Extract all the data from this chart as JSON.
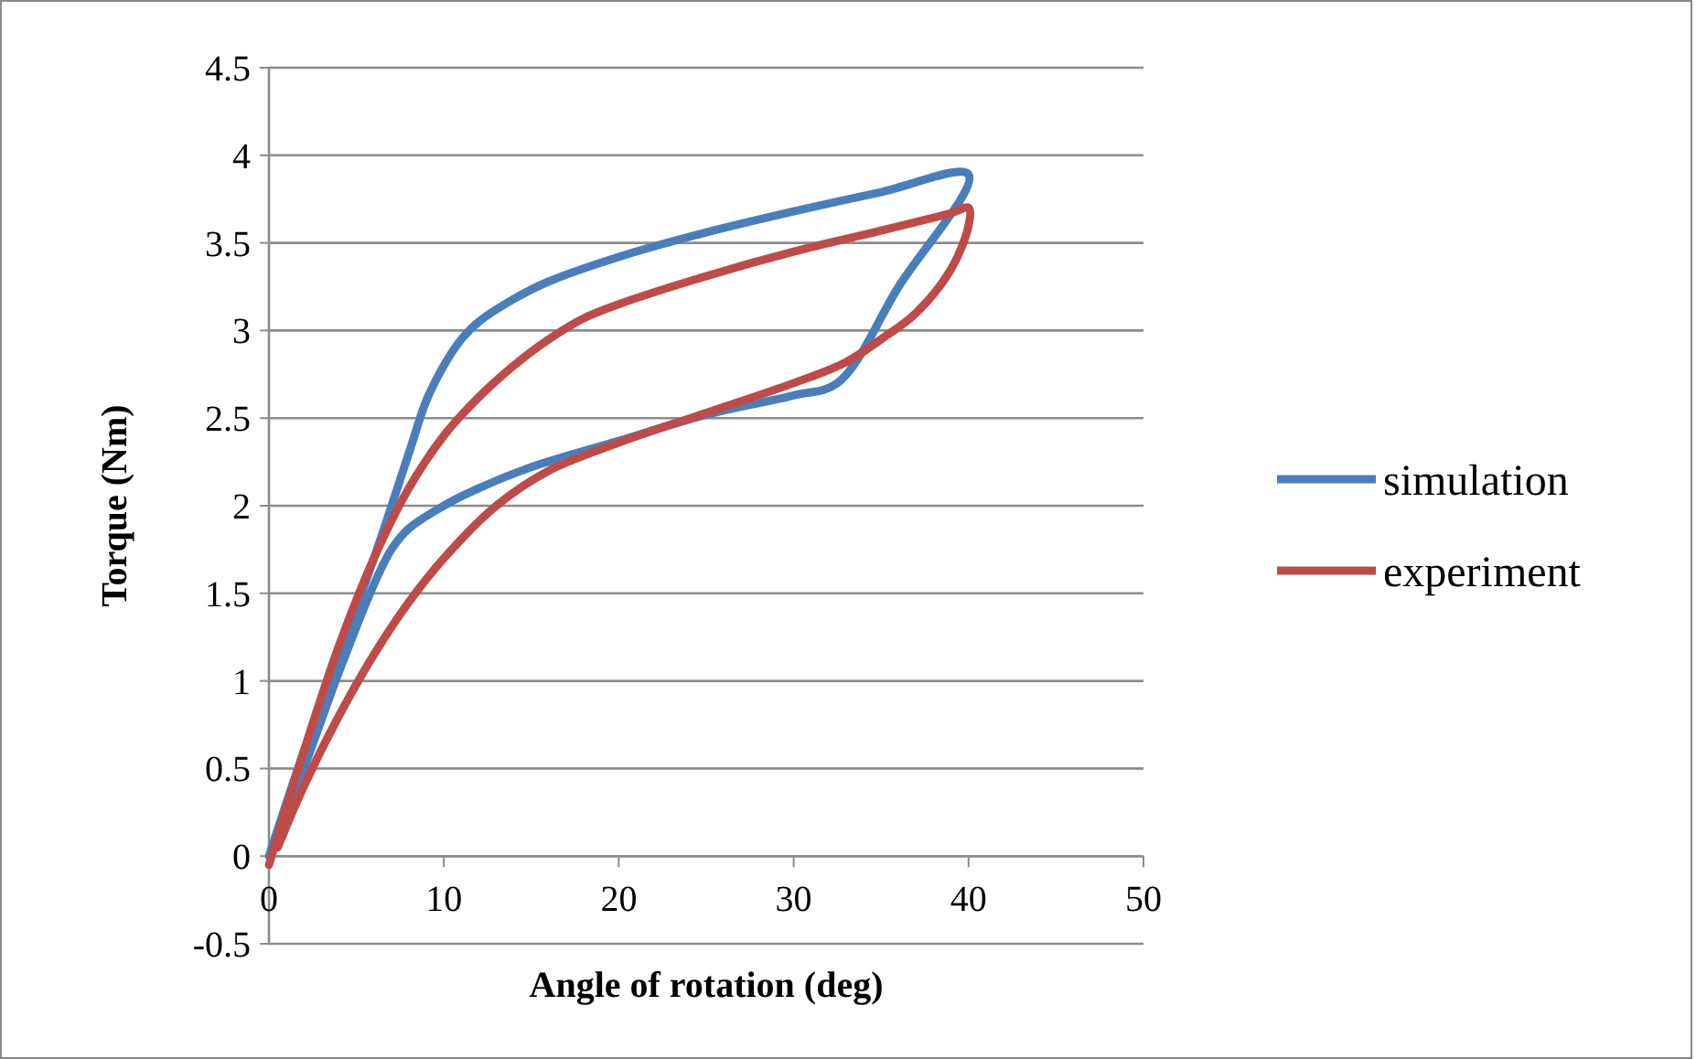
{
  "chart_data": {
    "type": "line",
    "xlabel": "Angle of rotation (deg)",
    "ylabel": "Torque (Nm)",
    "xlim": [
      0,
      50
    ],
    "xticks": [
      0,
      10,
      20,
      30,
      40,
      50
    ],
    "ylim": [
      -0.5,
      4.5
    ],
    "yticks": [
      -0.5,
      0,
      0.5,
      1,
      1.5,
      2,
      2.5,
      3,
      3.5,
      4,
      4.5
    ],
    "grid": "y",
    "legend": "right",
    "marker": "none",
    "line_style": "solid",
    "series": [
      {
        "name": "simulation",
        "color": "#4a7ebb",
        "x": [
          0,
          2,
          4,
          6,
          8,
          9,
          10,
          11,
          12,
          14,
          16,
          20,
          25,
          30,
          35,
          40,
          36,
          32.5,
          30,
          25,
          20,
          15,
          12,
          10,
          8,
          7,
          6,
          4,
          2,
          0.5
        ],
        "values": [
          0,
          0.6,
          1.15,
          1.7,
          2.3,
          2.6,
          2.8,
          2.95,
          3.05,
          3.18,
          3.28,
          3.42,
          3.56,
          3.68,
          3.79,
          3.89,
          3.25,
          2.7,
          2.63,
          2.52,
          2.37,
          2.22,
          2.1,
          2,
          1.87,
          1.75,
          1.55,
          1.05,
          0.5,
          0.1
        ]
      },
      {
        "name": "experiment",
        "color": "#be4b48",
        "x": [
          0,
          2,
          4,
          6,
          8,
          10,
          12,
          14,
          16,
          18,
          20,
          25,
          30,
          35,
          39,
          40,
          40,
          39,
          37,
          35,
          33,
          30,
          25,
          20,
          16,
          13,
          10,
          8,
          6,
          4,
          2,
          0.5
        ],
        "values": [
          -0.05,
          0.6,
          1.2,
          1.7,
          2.1,
          2.4,
          2.62,
          2.8,
          2.95,
          3.07,
          3.15,
          3.31,
          3.45,
          3.57,
          3.67,
          3.7,
          3.6,
          3.35,
          3.1,
          2.95,
          2.82,
          2.7,
          2.53,
          2.36,
          2.2,
          2,
          1.7,
          1.45,
          1.15,
          0.8,
          0.4,
          0.05
        ]
      }
    ]
  }
}
